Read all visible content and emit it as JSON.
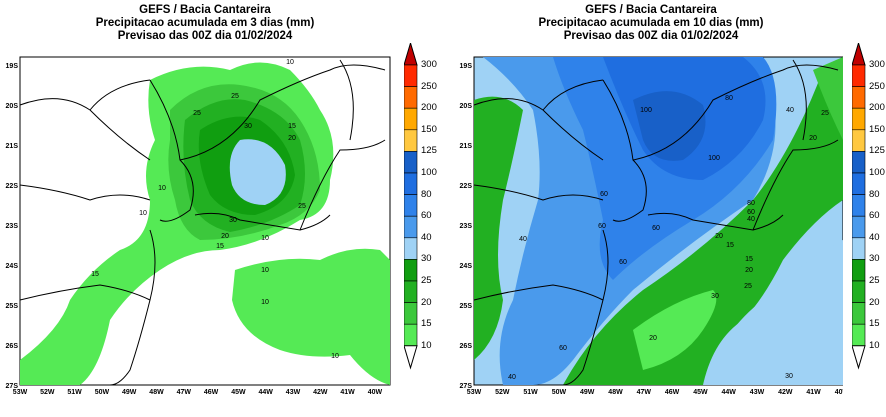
{
  "maps": [
    {
      "title": [
        "GEFS / Bacia Cantareira",
        "Precipitacao acumulada em 3 dias (mm)",
        "Previsao das 00Z dia 01/02/2024"
      ],
      "contour_labels": [
        "10",
        "25",
        "25",
        "30",
        "15",
        "20",
        "10",
        "10",
        "30",
        "20",
        "15",
        "10",
        "25",
        "15",
        "10",
        "10",
        "10"
      ]
    },
    {
      "title": [
        "GEFS / Bacia Cantareira",
        "Precipitacao acumulada em 10 dias (mm)",
        "Previsao das 00Z dia 01/02/2024"
      ],
      "contour_labels": [
        "100",
        "80",
        "100",
        "40",
        "25",
        "20",
        "60",
        "60",
        "40",
        "60",
        "60",
        "80",
        "60",
        "40",
        "20",
        "15",
        "15",
        "20",
        "25",
        "30",
        "20",
        "60",
        "40",
        "30"
      ]
    }
  ],
  "lon_ticks": [
    "53W",
    "52W",
    "51W",
    "50W",
    "49W",
    "48W",
    "47W",
    "46W",
    "45W",
    "44W",
    "43W",
    "42W",
    "41W",
    "40W"
  ],
  "lat_ticks": [
    "19S",
    "20S",
    "21S",
    "22S",
    "23S",
    "24S",
    "25S",
    "26S",
    "27S"
  ],
  "colorbar": {
    "labels": [
      "300",
      "250",
      "200",
      "150",
      "125",
      "100",
      "80",
      "60",
      "40",
      "30",
      "25",
      "20",
      "15",
      "10"
    ],
    "colors": [
      "#ff2a00",
      "#ff6a00",
      "#ffa800",
      "#ffc840",
      "#1860c8",
      "#1f6ee0",
      "#2f82ea",
      "#4a9aec",
      "#9fd2f5",
      "#109e10",
      "#22b022",
      "#3cc83c",
      "#55ea55"
    ],
    "over_color": "#c00000",
    "under_color": "#ffffff"
  }
}
